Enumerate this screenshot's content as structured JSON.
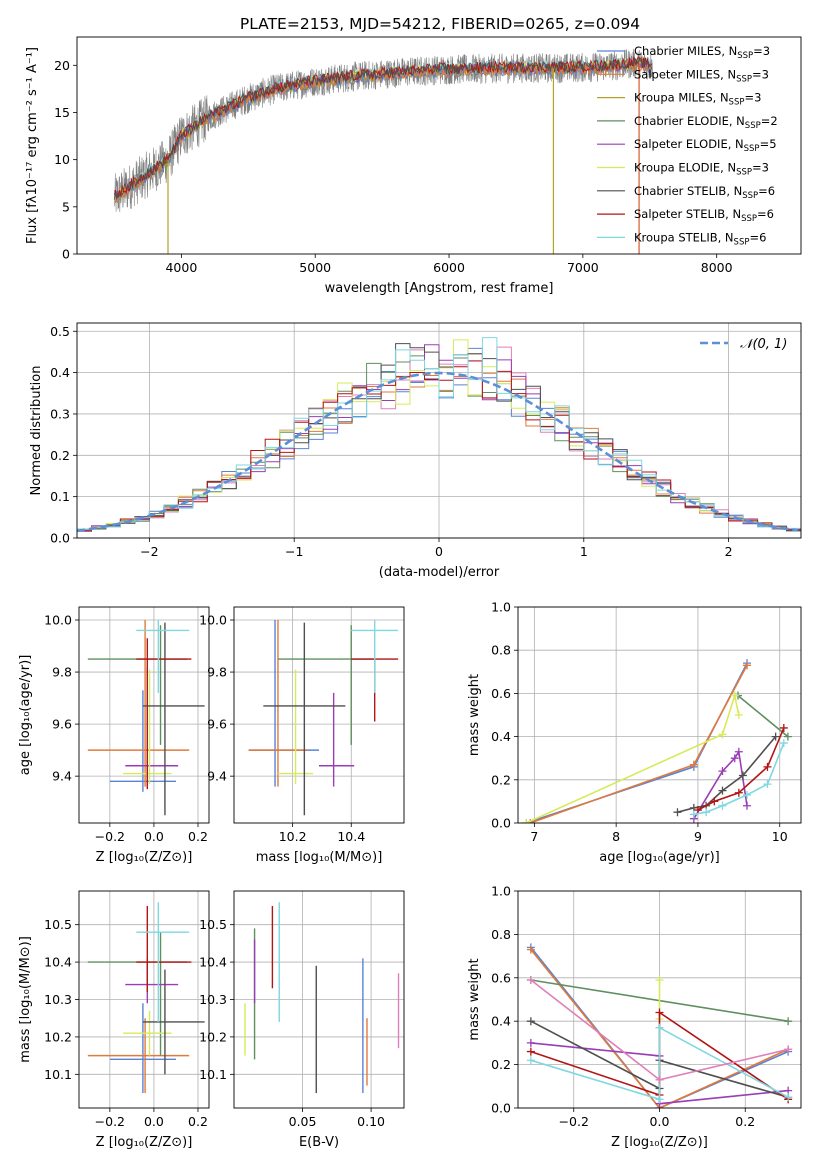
{
  "figure": {
    "title": "PLATE=2153, MJD=54212, FIBERID=0265, z=0.094"
  },
  "colors": {
    "series": [
      "#5a83d6",
      "#e07a3a",
      "#b5a22a",
      "#5f8f5f",
      "#9b3db6",
      "#d8ea5a",
      "#4f4f4f",
      "#b21515",
      "#7fd7e0"
    ],
    "grid": "#b0b0b0",
    "data_gray": "#808080",
    "gauss": "#5b8fd6",
    "pink": "#e07fb8"
  },
  "chart_data": [
    {
      "id": "spectrum",
      "type": "line",
      "xlabel": "wavelength [Angstrom, rest frame]",
      "ylabel": "Flux [fλ10⁻¹⁷ erg cm⁻² s⁻¹ A⁻¹]",
      "xlim": [
        3220,
        8630
      ],
      "ylim": [
        0,
        23
      ],
      "xticks": [
        4000,
        5000,
        6000,
        7000,
        8000
      ],
      "yticks": [
        0,
        5,
        10,
        15,
        20
      ],
      "legend": [
        "Chabrier MILES, N_SSP=3",
        "Salpeter MILES, N_SSP=3",
        "Kroupa MILES, N_SSP=3",
        "Chabrier ELODIE, N_SSP=2",
        "Salpeter ELODIE, N_SSP=5",
        "Kroupa ELODIE, N_SSP=3",
        "Chabrier STELIB, N_SSP=6",
        "Salpeter STELIB, N_SSP=6",
        "Kroupa STELIB, N_SSP=6"
      ],
      "legend_position": "right",
      "continuum": {
        "x": [
          3500,
          3700,
          3900,
          4000,
          4200,
          4500,
          4700,
          5000,
          5300,
          5600,
          5900,
          6200,
          6500,
          6800,
          7100,
          7400,
          7500
        ],
        "y": [
          6,
          8,
          10,
          12.5,
          14.5,
          16.5,
          17.5,
          18.3,
          18.8,
          19.2,
          19.5,
          19.6,
          19.7,
          19.7,
          19.8,
          20.2,
          20
        ]
      },
      "spikes": [
        {
          "x": 3900,
          "y": 0
        },
        {
          "x": 6780,
          "y": 0
        },
        {
          "x": 7420,
          "y": 0
        }
      ]
    },
    {
      "id": "residuals",
      "type": "histogram",
      "xlabel": "(data-model)/error",
      "ylabel": "Normed distribution",
      "xlim": [
        -2.5,
        2.5
      ],
      "ylim": [
        0,
        0.52
      ],
      "xticks": [
        -2,
        -1,
        0,
        1,
        2
      ],
      "yticks": [
        0.0,
        0.1,
        0.2,
        0.3,
        0.4,
        0.5
      ],
      "legend": [
        "𝒩(0, 1)"
      ],
      "legend_position": "top-right",
      "bin_width": 0.1,
      "gaussian": {
        "mu": 0,
        "sigma": 1
      }
    },
    {
      "id": "age_vs_Z",
      "type": "errorbar",
      "xlabel": "Z [log₁₀(Z/Z⊙)]",
      "ylabel": "age  [log₁₀(age/yr)]",
      "xlim": [
        -0.34,
        0.25
      ],
      "ylim": [
        9.22,
        10.05
      ],
      "xticks": [
        -0.2,
        0.0,
        0.2
      ],
      "yticks": [
        9.4,
        9.6,
        9.8,
        10.0
      ],
      "points": [
        {
          "series": 0,
          "x": -0.05,
          "y": 9.38,
          "xerr": [
            0.15,
            0.15
          ],
          "yerr": [
            0.04,
            0.35
          ]
        },
        {
          "series": 1,
          "x": -0.04,
          "y": 9.5,
          "xerr": [
            0.26,
            0.2
          ],
          "yerr": [
            0.14,
            0.5
          ]
        },
        {
          "series": 3,
          "x": 0.03,
          "y": 9.85,
          "xerr": [
            0.33,
            0.12
          ],
          "yerr": [
            0.33,
            0.13
          ]
        },
        {
          "series": 4,
          "x": -0.03,
          "y": 9.44,
          "xerr": [
            0.1,
            0.14
          ],
          "yerr": [
            0.08,
            0.38
          ]
        },
        {
          "series": 5,
          "x": -0.02,
          "y": 9.41,
          "xerr": [
            0.12,
            0.1
          ],
          "yerr": [
            0.04,
            0.4
          ]
        },
        {
          "series": 6,
          "x": 0.05,
          "y": 9.67,
          "xerr": [
            0.1,
            0.18
          ],
          "yerr": [
            0.42,
            0.32
          ]
        },
        {
          "series": 7,
          "x": -0.03,
          "y": 9.85,
          "xerr": [
            0.05,
            0.2
          ],
          "yerr": [
            0.5,
            0.08
          ]
        },
        {
          "series": 8,
          "x": 0.02,
          "y": 9.96,
          "xerr": [
            0.1,
            0.14
          ],
          "yerr": [
            0.24,
            0.04
          ]
        }
      ]
    },
    {
      "id": "age_vs_mass",
      "type": "errorbar",
      "xlabel": "mass [log₁₀(M/M⊙)]",
      "ylabel": "",
      "xlim": [
        10.0,
        10.58
      ],
      "ylim": [
        9.22,
        10.05
      ],
      "xticks": [
        10.2,
        10.4
      ],
      "yticks": [
        9.4,
        9.6,
        9.8,
        10.0
      ],
      "points": [
        {
          "series": 0,
          "x": 10.14,
          "y": 9.5,
          "xerr": [
            0.09,
            0.15
          ],
          "yerr": [
            0.14,
            0.5
          ]
        },
        {
          "series": 1,
          "x": 10.15,
          "y": 9.5,
          "xerr": [
            0.1,
            0.1
          ],
          "yerr": [
            0.14,
            0.5
          ]
        },
        {
          "series": 3,
          "x": 10.4,
          "y": 9.85,
          "xerr": [
            0.25,
            0.08
          ],
          "yerr": [
            0.33,
            0.13
          ]
        },
        {
          "series": 4,
          "x": 10.34,
          "y": 9.44,
          "xerr": [
            0.05,
            0.07
          ],
          "yerr": [
            0.08,
            0.28
          ]
        },
        {
          "series": 5,
          "x": 10.21,
          "y": 9.41,
          "xerr": [
            0.06,
            0.06
          ],
          "yerr": [
            0.04,
            0.4
          ]
        },
        {
          "series": 6,
          "x": 10.24,
          "y": 9.67,
          "xerr": [
            0.14,
            0.14
          ],
          "yerr": [
            0.42,
            0.32
          ]
        },
        {
          "series": 7,
          "x": 10.48,
          "y": 9.85,
          "xerr": [
            0.08,
            0.08
          ],
          "yerr": [
            0.24,
            0.0
          ]
        },
        {
          "series": 8,
          "x": 10.48,
          "y": 9.96,
          "xerr": [
            0.08,
            0.08
          ],
          "yerr": [
            0.24,
            0.04
          ]
        }
      ]
    },
    {
      "id": "massweight_vs_age",
      "type": "line",
      "xlabel": "age  [log₁₀(age/yr)]",
      "ylabel": "mass weight",
      "xlim": [
        6.8,
        10.26
      ],
      "ylim": [
        0,
        1
      ],
      "xticks": [
        7,
        8,
        9,
        10
      ],
      "yticks": [
        0.0,
        0.2,
        0.4,
        0.6,
        0.8,
        1.0
      ],
      "series": [
        {
          "color": 0,
          "x": [
            6.9,
            8.95,
            9.6
          ],
          "y": [
            0.0,
            0.26,
            0.74
          ]
        },
        {
          "color": 1,
          "x": [
            6.95,
            8.95,
            9.6
          ],
          "y": [
            0.0,
            0.27,
            0.73
          ]
        },
        {
          "color": 3,
          "x": [
            9.49,
            10.1
          ],
          "y": [
            0.59,
            0.4
          ]
        },
        {
          "color": 4,
          "x": [
            8.95,
            9.3,
            9.45,
            9.5,
            9.6
          ],
          "y": [
            0.02,
            0.24,
            0.3,
            0.33,
            0.08
          ]
        },
        {
          "color": 5,
          "x": [
            6.9,
            9.3,
            9.45,
            9.5
          ],
          "y": [
            0.0,
            0.41,
            0.59,
            0.5
          ]
        },
        {
          "color": 6,
          "x": [
            8.75,
            8.95,
            9.1,
            9.3,
            9.55,
            9.95
          ],
          "y": [
            0.05,
            0.07,
            0.08,
            0.15,
            0.22,
            0.4
          ]
        },
        {
          "color": 7,
          "x": [
            9.0,
            9.2,
            9.5,
            9.85,
            10.05
          ],
          "y": [
            0.06,
            0.1,
            0.14,
            0.26,
            0.44
          ]
        },
        {
          "color": 8,
          "x": [
            8.95,
            9.1,
            9.3,
            9.6,
            9.85,
            10.05
          ],
          "y": [
            0.04,
            0.05,
            0.08,
            0.13,
            0.18,
            0.37
          ]
        }
      ]
    },
    {
      "id": "mass_vs_Z",
      "type": "errorbar",
      "xlabel": "Z [log₁₀(Z/Z⊙)]",
      "ylabel": "mass [log₁₀(M/M⊙)]",
      "xlim": [
        -0.34,
        0.25
      ],
      "ylim": [
        10.01,
        10.59
      ],
      "xticks": [
        -0.2,
        0.0,
        0.2
      ],
      "yticks": [
        10.1,
        10.2,
        10.3,
        10.4,
        10.5
      ],
      "points": [
        {
          "series": 0,
          "x": -0.05,
          "y": 10.14,
          "xerr": [
            0.15,
            0.15
          ],
          "yerr": [
            0.09,
            0.15
          ]
        },
        {
          "series": 1,
          "x": -0.04,
          "y": 10.15,
          "xerr": [
            0.26,
            0.2
          ],
          "yerr": [
            0.1,
            0.1
          ]
        },
        {
          "series": 3,
          "x": 0.03,
          "y": 10.4,
          "xerr": [
            0.33,
            0.12
          ],
          "yerr": [
            0.25,
            0.08
          ]
        },
        {
          "series": 4,
          "x": -0.03,
          "y": 10.34,
          "xerr": [
            0.1,
            0.14
          ],
          "yerr": [
            0.05,
            0.07
          ]
        },
        {
          "series": 5,
          "x": -0.02,
          "y": 10.21,
          "xerr": [
            0.12,
            0.1
          ],
          "yerr": [
            0.06,
            0.06
          ]
        },
        {
          "series": 6,
          "x": 0.05,
          "y": 10.24,
          "xerr": [
            0.1,
            0.18
          ],
          "yerr": [
            0.14,
            0.14
          ]
        },
        {
          "series": 7,
          "x": -0.03,
          "y": 10.4,
          "xerr": [
            0.05,
            0.2
          ],
          "yerr": [
            0.08,
            0.15
          ]
        },
        {
          "series": 8,
          "x": 0.02,
          "y": 10.48,
          "xerr": [
            0.1,
            0.14
          ],
          "yerr": [
            0.24,
            0.08
          ]
        }
      ]
    },
    {
      "id": "mass_vs_ebv",
      "type": "errorbar",
      "xlabel": "E(B-V)",
      "ylabel": "",
      "xlim": [
        0.0,
        0.124
      ],
      "ylim": [
        10.01,
        10.59
      ],
      "xticks": [
        0.05,
        0.1
      ],
      "yticks": [
        10.1,
        10.2,
        10.3,
        10.4,
        10.5
      ],
      "points": [
        {
          "series": 0,
          "x": 0.094,
          "y": 10.14,
          "xerr": [
            0,
            0
          ],
          "yerr": [
            0.09,
            0.27
          ]
        },
        {
          "series": 1,
          "x": 0.097,
          "y": 10.15,
          "xerr": [
            0,
            0
          ],
          "yerr": [
            0.08,
            0.1
          ]
        },
        {
          "series": 3,
          "x": 0.015,
          "y": 10.4,
          "xerr": [
            0,
            0
          ],
          "yerr": [
            0.26,
            0.09
          ]
        },
        {
          "series": 4,
          "x": 0.015,
          "y": 10.34,
          "xerr": [
            0,
            0
          ],
          "yerr": [
            0.05,
            0.12
          ]
        },
        {
          "series": 5,
          "x": 0.008,
          "y": 10.21,
          "xerr": [
            0,
            0
          ],
          "yerr": [
            0.06,
            0.08
          ]
        },
        {
          "series": 6,
          "x": 0.06,
          "y": 10.24,
          "xerr": [
            0,
            0
          ],
          "yerr": [
            0.19,
            0.15
          ]
        },
        {
          "series": 7,
          "x": 0.028,
          "y": 10.44,
          "xerr": [
            0,
            0
          ],
          "yerr": [
            0.11,
            0.11
          ]
        },
        {
          "series": 8,
          "x": 0.033,
          "y": 10.4,
          "xerr": [
            0,
            0
          ],
          "yerr": [
            0.16,
            0.16
          ]
        },
        {
          "series": 9,
          "x": 0.12,
          "y": 10.27,
          "xerr": [
            0,
            0
          ],
          "yerr": [
            0.1,
            0.1
          ]
        }
      ]
    },
    {
      "id": "massweight_vs_Z",
      "type": "line",
      "xlabel": "Z [log₁₀(Z/Z⊙)]",
      "ylabel": "mass weight",
      "xlim": [
        -0.33,
        0.33
      ],
      "ylim": [
        0,
        1
      ],
      "xticks": [
        -0.2,
        0.0,
        0.2
      ],
      "yticks": [
        0.0,
        0.2,
        0.4,
        0.6,
        0.8,
        1.0
      ],
      "series": [
        {
          "color": 0,
          "x": [
            -0.3,
            0.0,
            0.3
          ],
          "y": [
            0.74,
            0.0,
            0.26
          ]
        },
        {
          "color": 1,
          "x": [
            -0.3,
            0.0,
            0.3
          ],
          "y": [
            0.73,
            0.0,
            0.27
          ]
        },
        {
          "color": 3,
          "x": [
            -0.3,
            0.3
          ],
          "y": [
            0.59,
            0.4
          ]
        },
        {
          "color": 4,
          "x": [
            -0.3,
            0.0,
            0.0,
            0.3
          ],
          "y": [
            0.3,
            0.24,
            0.02,
            0.08
          ]
        },
        {
          "color": 5,
          "x": [
            0.0,
            0.0
          ],
          "y": [
            0.59,
            0.41
          ]
        },
        {
          "color": 6,
          "x": [
            -0.3,
            0.0,
            0.0,
            0.3
          ],
          "y": [
            0.4,
            0.09,
            0.22,
            0.05
          ]
        },
        {
          "color": 7,
          "x": [
            -0.3,
            0.0,
            0.0,
            0.3
          ],
          "y": [
            0.26,
            0.06,
            0.44,
            0.04
          ]
        },
        {
          "color": 8,
          "x": [
            -0.3,
            0.0,
            0.0,
            0.3
          ],
          "y": [
            0.22,
            0.04,
            0.37,
            0.05
          ]
        },
        {
          "color": 9,
          "x": [
            -0.3,
            0.0,
            0.3
          ],
          "y": [
            0.59,
            0.13,
            0.27
          ]
        }
      ]
    }
  ]
}
